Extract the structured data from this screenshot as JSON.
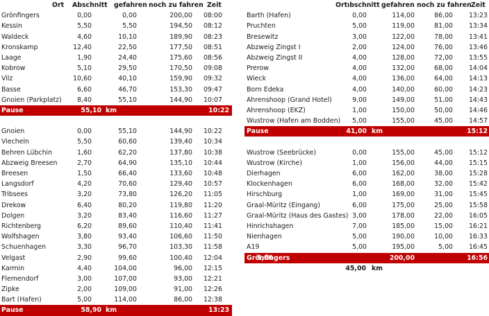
{
  "headers": {
    "ort": "Ort",
    "abschnitt_left": "Abschnitt",
    "abschnitt_right": "ıbschnitt",
    "gefahren": "gefahren",
    "noch": "noch zu fahren",
    "zeit": "Zeit"
  },
  "left": {
    "block1": [
      [
        "Grönfingers",
        "0,00",
        "0,00",
        "200,00",
        "08:00"
      ],
      [
        "Kessin",
        "5,50",
        "5,50",
        "194,50",
        "08:12"
      ],
      [
        "Waldeck",
        "4,60",
        "10,10",
        "189,90",
        "08:23"
      ],
      [
        "Kronskamp",
        "12,40",
        "22,50",
        "177,50",
        "08:51"
      ],
      [
        "Laage",
        "1,90",
        "24,40",
        "175,60",
        "08:56"
      ],
      [
        "Kobrow",
        "5,10",
        "29,50",
        "170,50",
        "09:08"
      ],
      [
        "Vilz",
        "10,60",
        "40,10",
        "159,90",
        "09:32"
      ],
      [
        "Basse",
        "6,60",
        "46,70",
        "153,30",
        "09:47"
      ],
      [
        "Gnoien (Parkplatz)",
        "8,40",
        "55,10",
        "144,90",
        "10:07"
      ]
    ],
    "pause1": {
      "label": "Pause",
      "value": "55,10",
      "unit": "km",
      "time": "10:22"
    },
    "block2": [
      [
        "Gnoien",
        "0,00",
        "55,10",
        "144,90",
        "10:22"
      ],
      [
        "Viecheln",
        "5,50",
        "60,60",
        "139,40",
        "10:34"
      ],
      [
        "Behren Lübchin",
        "1,60",
        "62,20",
        "137,80",
        "10:38"
      ],
      [
        "Abzweig Breesen",
        "2,70",
        "64,90",
        "135,10",
        "10:44"
      ],
      [
        "Breesen",
        "1,50",
        "66,40",
        "133,60",
        "10:48"
      ],
      [
        "Langsdorf",
        "4,20",
        "70,60",
        "129,40",
        "10:57"
      ],
      [
        "Tribsees",
        "3,20",
        "73,80",
        "126,20",
        "11:05"
      ],
      [
        "Drekow",
        "6,40",
        "80,20",
        "119,80",
        "11:20"
      ],
      [
        "Dolgen",
        "3,20",
        "83,40",
        "116,60",
        "11:27"
      ],
      [
        "Richtenberg",
        "6,20",
        "89,60",
        "110,40",
        "11:41"
      ],
      [
        "Wolfshagen",
        "3,80",
        "93,40",
        "106,60",
        "11:50"
      ],
      [
        "Schuenhagen",
        "3,30",
        "96,70",
        "103,30",
        "11:58"
      ],
      [
        "Velgast",
        "2,90",
        "99,60",
        "100,40",
        "12:04"
      ],
      [
        "Karmin",
        "4,40",
        "104,00",
        "96,00",
        "12:15"
      ],
      [
        "Flemendorf",
        "3,00",
        "107,00",
        "93,00",
        "12:21"
      ],
      [
        "Zipke",
        "2,00",
        "109,00",
        "91,00",
        "12:26"
      ],
      [
        "Bart (Hafen)",
        "5,00",
        "114,00",
        "86,00",
        "12:38"
      ]
    ],
    "pause2": {
      "label": "Pause",
      "value": "58,90",
      "unit": "km",
      "time": "13:23"
    }
  },
  "right": {
    "block1": [
      [
        "Barth (Hafen)",
        "0,00",
        "114,00",
        "86,00",
        "13:23"
      ],
      [
        "Pruchten",
        "5,00",
        "119,00",
        "81,00",
        "13:34"
      ],
      [
        "Bresewitz",
        "3,00",
        "122,00",
        "78,00",
        "13:41"
      ],
      [
        "Abzweig Zingst I",
        "2,00",
        "124,00",
        "76,00",
        "13:46"
      ],
      [
        "Abzweig Zingst II",
        "4,00",
        "128,00",
        "72,00",
        "13:55"
      ],
      [
        "Prerow",
        "4,00",
        "132,00",
        "68,00",
        "14:04"
      ],
      [
        "Wieck",
        "4,00",
        "136,00",
        "64,00",
        "14:13"
      ],
      [
        "Born Edeka",
        "4,00",
        "140,00",
        "60,00",
        "14:23"
      ],
      [
        "Ahrenshoop (Grand Hotel)",
        "9,00",
        "149,00",
        "51,00",
        "14:43"
      ],
      [
        "Ahrenshoop (EKZ)",
        "1,00",
        "150,00",
        "50,00",
        "14:46"
      ],
      [
        "Wustrow (Hafen am Bodden)",
        "5,00",
        "155,00",
        "45,00",
        "14:57"
      ]
    ],
    "pause1": {
      "label": "Pause",
      "value": "41,00",
      "unit": "km",
      "time": "15:12"
    },
    "block2": [
      [
        "Wustrow (Seebrücke)",
        "0,00",
        "155,00",
        "45,00",
        "15:12"
      ],
      [
        "Wustrow (Kirche)",
        "1,00",
        "156,00",
        "44,00",
        "15:15"
      ],
      [
        "Dierhagen",
        "6,00",
        "162,00",
        "38,00",
        "15:28"
      ],
      [
        "Klockenhagen",
        "6,00",
        "168,00",
        "32,00",
        "15:42"
      ],
      [
        "Hirschburg",
        "1,00",
        "169,00",
        "31,00",
        "15:45"
      ],
      [
        "Graal-Müritz (Eingang)",
        "6,00",
        "175,00",
        "25,00",
        "15:58"
      ],
      [
        "Graal-Müritz (Haus des Gastes)",
        "3,00",
        "178,00",
        "22,00",
        "16:05"
      ],
      [
        "Hinrichshagen",
        "7,00",
        "185,00",
        "15,00",
        "16:21"
      ],
      [
        "Nienhagen",
        "5,00",
        "190,00",
        "10,00",
        "16:33"
      ],
      [
        "A19",
        "5,00",
        "195,00",
        "5,00",
        "16:45"
      ]
    ],
    "final": [
      "Grönfingers",
      "5,00",
      "200,00",
      "16:56"
    ],
    "total": {
      "value": "45,00",
      "unit": "km"
    }
  }
}
